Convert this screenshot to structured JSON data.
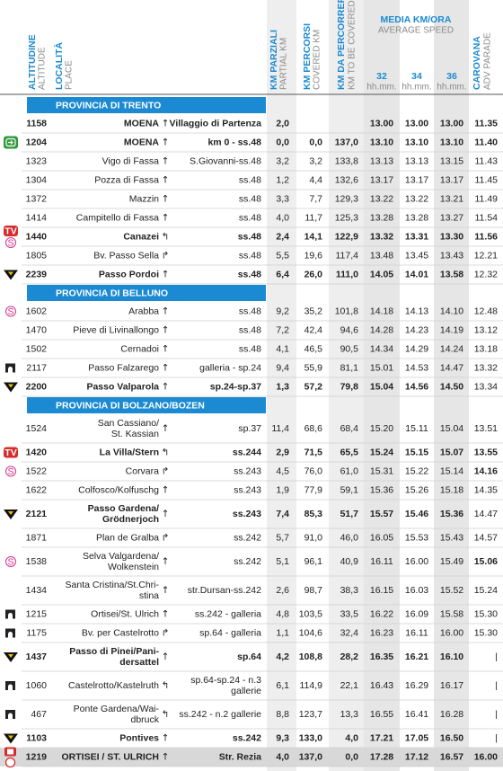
{
  "header": {
    "columns": [
      {
        "title": "ALTITUDINE",
        "subtitle": "ALTITUDE"
      },
      {
        "title": "LOCALITÀ",
        "subtitle": "PLACE"
      },
      {
        "title": "KM PARZIALI",
        "subtitle": "PARTIAL KM"
      },
      {
        "title": "KM PERCORSI",
        "subtitle": "COVERED KM"
      },
      {
        "title": "KM DA PERCORRERE",
        "subtitle": "KM TO BE COVERED"
      },
      {
        "title": "CAROVANA",
        "subtitle": "ADV PARADE"
      }
    ],
    "speed_group": {
      "title": "MEDIA KM/ORA",
      "subtitle": "AVERAGE SPEED"
    },
    "speeds": [
      {
        "label": "32",
        "unit": "hh.mm."
      },
      {
        "label": "34",
        "unit": "hh.mm."
      },
      {
        "label": "36",
        "unit": "hh.mm."
      }
    ]
  },
  "sections": [
    {
      "title": "PROVINCIA DI TRENTO",
      "rows": [
        {
          "bold": true,
          "bold_caravan": true,
          "cells": [
            "1158",
            "MOENA",
            "↑",
            "Villaggio di Partenza",
            "2,0",
            null,
            null,
            "13.00",
            "13.00",
            "13.00",
            "11.35"
          ]
        },
        {
          "bold": true,
          "bold_caravan": true,
          "icon": "start",
          "cells": [
            "1204",
            "MOENA",
            "↑",
            "km 0 - ss.48",
            "0,0",
            "0,0",
            "137,0",
            "13.10",
            "13.10",
            "13.10",
            "11.40"
          ]
        },
        {
          "cells": [
            "1323",
            "Vigo di Fassa",
            "↑",
            "S.Giovanni-ss.48",
            "3,2",
            "3,2",
            "133,8",
            "13.13",
            "13.13",
            "13.15",
            "11.43"
          ]
        },
        {
          "cells": [
            "1304",
            "Pozza di Fassa",
            "↑",
            "ss.48",
            "1,2",
            "4,4",
            "132,6",
            "13.17",
            "13.17",
            "13.17",
            "11.45"
          ]
        },
        {
          "cells": [
            "1372",
            "Mazzin",
            "↑",
            "ss.48",
            "3,3",
            "7,7",
            "129,3",
            "13.22",
            "13.22",
            "13.21",
            "11.49"
          ]
        },
        {
          "cells": [
            "1414",
            "Campitello di Fassa",
            "↑",
            "ss.48",
            "4,0",
            "11,7",
            "125,3",
            "13.28",
            "13.28",
            "13.27",
            "11.54"
          ]
        },
        {
          "bold": true,
          "bold_caravan": true,
          "badges": [
            "TV",
            "S"
          ],
          "cells": [
            "1440",
            "Canazei",
            "↰",
            "ss.48",
            "2,4",
            "14,1",
            "122,9",
            "13.32",
            "13.31",
            "13.30",
            "11.56"
          ]
        },
        {
          "cells": [
            "1805",
            "Bv. Passo Sella",
            "↱",
            "ss.48",
            "5,5",
            "19,6",
            "117,4",
            "13.48",
            "13.45",
            "13.43",
            "12.21"
          ]
        },
        {
          "bold": true,
          "icon": "gpm",
          "cells": [
            "2239",
            "Passo Pordoi",
            "↑",
            "ss.48",
            "6,4",
            "26,0",
            "111,0",
            "14.05",
            "14.01",
            "13.58",
            "12.32"
          ]
        }
      ]
    },
    {
      "title": "PROVINCIA DI BELLUNO",
      "rows": [
        {
          "badges": [
            "S"
          ],
          "cells": [
            "1602",
            "Arabba",
            "↑",
            "ss.48",
            "9,2",
            "35,2",
            "101,8",
            "14.18",
            "14.13",
            "14.10",
            "12.48"
          ]
        },
        {
          "cells": [
            "1470",
            "Pieve di Livinallongo",
            "↑",
            "ss.48",
            "7,2",
            "42,4",
            "94,6",
            "14.28",
            "14.23",
            "14.19",
            "13.12"
          ]
        },
        {
          "cells": [
            "1502",
            "Cernadoi",
            "↑",
            "ss.48",
            "4,1",
            "46,5",
            "90,5",
            "14.34",
            "14.29",
            "14.24",
            "13.18"
          ]
        },
        {
          "icon": "tunnel",
          "cells": [
            "2117",
            "Passo Falzarego",
            "↑",
            "galleria - sp.24",
            "9,4",
            "55,9",
            "81,1",
            "15.01",
            "14.53",
            "14.47",
            "13.32"
          ]
        },
        {
          "bold": true,
          "icon": "gpm",
          "cells": [
            "2200",
            "Passo Valparola",
            "↑",
            "sp.24-sp.37",
            "1,3",
            "57,2",
            "79,8",
            "15.04",
            "14.56",
            "14.50",
            "13.34"
          ]
        }
      ]
    },
    {
      "title": "PROVINCIA DI BOLZANO/BOZEN",
      "rows": [
        {
          "cells": [
            "1524",
            [
              "San Cassiano/",
              "St. Kassian"
            ],
            "↑",
            "sp.37",
            "11,4",
            "68,6",
            "68,4",
            "15.20",
            "15.11",
            "15.04",
            "13.51"
          ]
        },
        {
          "bold": true,
          "bold_caravan": true,
          "badges": [
            "TV"
          ],
          "cells": [
            "1420",
            "La Villa/Stern",
            "↰",
            "ss.244",
            "2,9",
            "71,5",
            "65,5",
            "15.24",
            "15.15",
            "15.07",
            "13.55"
          ]
        },
        {
          "bold_caravan": true,
          "badges": [
            "S"
          ],
          "cells": [
            "1522",
            "Corvara",
            "↱",
            "ss.243",
            "4,5",
            "76,0",
            "61,0",
            "15.31",
            "15.22",
            "15.14",
            "14.16"
          ]
        },
        {
          "cells": [
            "1622",
            "Colfosco/Kolfuschg",
            "↑",
            "ss.243",
            "1,9",
            "77,9",
            "59,1",
            "15.36",
            "15.26",
            "15.18",
            "14.35"
          ]
        },
        {
          "bold": true,
          "icon": "gpm",
          "cells": [
            "2121",
            [
              "Passo Gardena/",
              "Grödnerjoch"
            ],
            "↑",
            "ss.243",
            "7,4",
            "85,3",
            "51,7",
            "15.57",
            "15.46",
            "15.36",
            "14.47"
          ]
        },
        {
          "cells": [
            "1871",
            "Plan de Gralba",
            "↱",
            "ss.242",
            "5,7",
            "91,0",
            "46,0",
            "16.05",
            "15.53",
            "15.43",
            "14.57"
          ]
        },
        {
          "bold_caravan": true,
          "badges": [
            "S"
          ],
          "cells": [
            "1538",
            [
              "Selva Valgardena/",
              "Wolkenstein"
            ],
            "↑",
            "ss.242",
            "5,1",
            "96,1",
            "40,9",
            "16.11",
            "16.00",
            "15.49",
            "15.06"
          ]
        },
        {
          "cells": [
            "1434",
            [
              "Santa Cristina/St.Chri-",
              "stina"
            ],
            "↑",
            "str.Dursan-ss.242",
            "2,6",
            "98,7",
            "38,3",
            "16.15",
            "16.03",
            "15.52",
            "15.24"
          ]
        },
        {
          "icon": "tunnel",
          "cells": [
            "1215",
            "Ortisei/St. Ulrich",
            "↑",
            "ss.242 - galleria",
            "4,8",
            "103,5",
            "33,5",
            "16.22",
            "16.09",
            "15.58",
            "15.30"
          ]
        },
        {
          "icon": "tunnel",
          "cells": [
            "1175",
            "Bv. per Castelrotto",
            "↱",
            "sp.64 - galleria",
            "1,1",
            "104,6",
            "32,4",
            "16.23",
            "16.11",
            "16.00",
            "15.30"
          ]
        },
        {
          "bold": true,
          "icon": "gpm",
          "cells": [
            "1437",
            [
              "Passo di Pinei/Pani-",
              "dersattel"
            ],
            "↑",
            "sp.64",
            "4,2",
            "108,8",
            "28,2",
            "16.35",
            "16.21",
            "16.10",
            "|"
          ]
        },
        {
          "icon": "tunnel",
          "cells": [
            "1060",
            "Castelrotto/Kastelruth",
            "↰",
            [
              "sp.64-sp.24 - n.3",
              "gallerie"
            ],
            "6,1",
            "114,9",
            "22,1",
            "16.43",
            "16.29",
            "16.17",
            "|"
          ]
        },
        {
          "icon": "tunnel",
          "cells": [
            "467",
            [
              "Ponte Gardena/Wai-",
              "dbruck"
            ],
            "↰",
            "ss.242 - n.2 gallerie",
            "8,8",
            "123,7",
            "13,3",
            "16.55",
            "16.41",
            "16.28",
            "|"
          ]
        },
        {
          "bold": true,
          "icon": "gpm",
          "cells": [
            "1103",
            "Pontives",
            "↑",
            "ss.242",
            "9,3",
            "133,0",
            "4,0",
            "17.21",
            "17.05",
            "16.50",
            "|"
          ]
        },
        {
          "bold": true,
          "bold_caravan": true,
          "highlight": true,
          "icon": "finish",
          "cells": [
            "1219",
            "ORTISEI / ST. ULRICH",
            "↑",
            "Str. Rezia",
            "4,0",
            "137,0",
            "0,0",
            "17.28",
            "17.12",
            "16.57",
            "16.00"
          ]
        }
      ]
    }
  ]
}
